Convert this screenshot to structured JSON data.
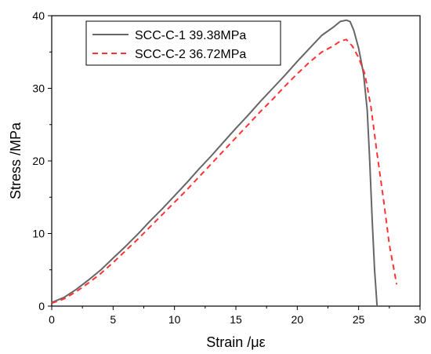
{
  "chart_data": {
    "type": "line",
    "title": "",
    "xlabel": "Strain /με",
    "ylabel": "Stress /MPa",
    "xlim": [
      0,
      30
    ],
    "ylim": [
      0,
      40
    ],
    "xticks": [
      0,
      5,
      10,
      15,
      20,
      25,
      30
    ],
    "yticks": [
      0,
      10,
      20,
      30,
      40
    ],
    "grid": false,
    "legend_position": "top-left",
    "series": [
      {
        "name": "SCC-C-1 39.38MPa",
        "color": "#666666",
        "style": "solid",
        "x": [
          0,
          1,
          2,
          3,
          4,
          5,
          6,
          7,
          8,
          9,
          10,
          11,
          12,
          13,
          14,
          15,
          16,
          17,
          18,
          19,
          20,
          21,
          22,
          23,
          23.5,
          24,
          24.3,
          24.6,
          25,
          25.4,
          25.7,
          25.9,
          26.1,
          26.3,
          26.5
        ],
        "y": [
          0.5,
          1.2,
          2.3,
          3.6,
          5.0,
          6.6,
          8.2,
          9.9,
          11.7,
          13.4,
          15.2,
          17.0,
          18.9,
          20.7,
          22.6,
          24.5,
          26.3,
          28.2,
          30.0,
          31.8,
          33.7,
          35.5,
          37.3,
          38.5,
          39.2,
          39.38,
          39.2,
          38.0,
          35.5,
          32.0,
          27.0,
          20.0,
          12.0,
          5.0,
          0
        ]
      },
      {
        "name": "SCC-C-2 36.72MPa",
        "color": "#ff3333",
        "style": "dashed",
        "x": [
          0,
          1,
          2,
          3,
          4,
          5,
          6,
          7,
          8,
          9,
          10,
          11,
          12,
          13,
          14,
          15,
          16,
          17,
          18,
          19,
          20,
          21,
          22,
          23,
          23.5,
          24,
          24.5,
          25,
          25.5,
          26,
          26.5,
          27,
          27.5,
          28.1
        ],
        "y": [
          0.4,
          1.0,
          2.0,
          3.2,
          4.5,
          6.0,
          7.6,
          9.2,
          10.9,
          12.6,
          14.3,
          16.0,
          17.8,
          19.6,
          21.4,
          23.2,
          25.0,
          26.8,
          28.5,
          30.3,
          32.0,
          33.6,
          35.0,
          35.9,
          36.5,
          36.72,
          35.8,
          34.2,
          32.0,
          27.5,
          21.0,
          15.0,
          8.5,
          3.0
        ]
      }
    ]
  }
}
